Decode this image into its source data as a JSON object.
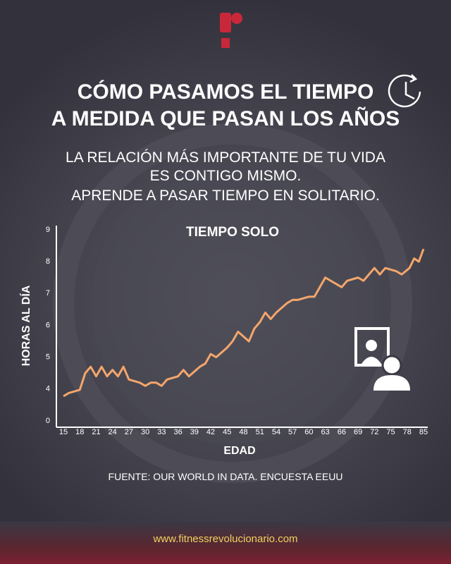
{
  "title": [
    "CÓMO PASAMOS EL TIEMPO",
    "A MEDIDA QUE PASAN LOS AÑOS"
  ],
  "subtitle": [
    "LA RELACIÓN MÁS IMPORTANTE DE TU VIDA",
    "ES CONTIGO MISMO.",
    "APRENDE A PASAR TIEMPO EN SOLITARIO."
  ],
  "chart_data": {
    "type": "line",
    "title": "TIEMPO SOLO",
    "x_label": "EDAD",
    "y_label": "HORAS AL DÍA",
    "x": [
      15,
      16,
      18,
      19,
      20,
      21,
      22,
      23,
      24,
      25,
      26,
      27,
      29,
      30,
      31,
      32,
      33,
      34,
      36,
      37,
      38,
      40,
      41,
      42,
      43,
      45,
      46,
      47,
      49,
      50,
      51,
      52,
      53,
      54,
      56,
      57,
      58,
      60,
      61,
      62,
      63,
      65,
      66,
      67,
      69,
      70,
      72,
      73,
      74,
      76,
      77,
      79,
      81,
      83,
      85
    ],
    "series": [
      {
        "name": "TIEMPO SOLO",
        "color": "#f4a66c",
        "values": [
          3.1,
          3.5,
          3.9,
          4.5,
          4.7,
          4.4,
          4.7,
          4.4,
          4.6,
          4.4,
          4.7,
          4.3,
          4.2,
          4.1,
          4.2,
          4.2,
          4.1,
          4.3,
          4.4,
          4.6,
          4.4,
          4.7,
          4.8,
          5.1,
          5.0,
          5.3,
          5.5,
          5.8,
          5.5,
          5.9,
          6.1,
          6.4,
          6.2,
          6.4,
          6.7,
          6.8,
          6.8,
          6.9,
          6.9,
          7.2,
          7.5,
          7.3,
          7.2,
          7.4,
          7.5,
          7.4,
          7.8,
          7.6,
          7.8,
          7.7,
          7.6,
          7.8,
          8.1,
          8.0,
          8.4
        ]
      }
    ],
    "xticks": [
      15,
      18,
      21,
      24,
      27,
      30,
      33,
      36,
      39,
      42,
      45,
      48,
      51,
      54,
      57,
      60,
      63,
      66,
      69,
      72,
      75,
      78,
      85
    ],
    "yticks": [
      0,
      4,
      5,
      6,
      7,
      8,
      9
    ]
  },
  "source": "FUENTE: OUR WORLD IN DATA. ENCUESTA EEUU",
  "footer": "www.fitnessrevolucionario.com"
}
